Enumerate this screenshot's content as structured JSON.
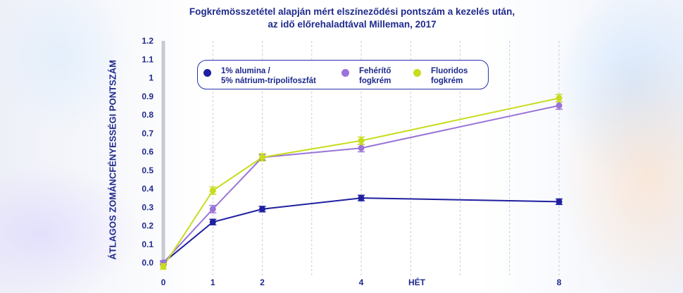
{
  "chart_data": {
    "type": "line",
    "title_line1": "Fogkrémösszetétel alapján mért elszíneződési pontszám a kezelés után,",
    "title_line2": "az idő előrehaladtával Milleman, 2017",
    "xlabel": "HÉT",
    "ylabel": "ÁTLAGOS ZOMÁNCFÉNYESSÉGI PONTSZÁM",
    "x": [
      0,
      1,
      2,
      4,
      8
    ],
    "x_tick_labels": [
      "0",
      "1",
      "2",
      "4",
      "8"
    ],
    "y_tick_labels": [
      "0.0",
      "0.1",
      "0.2",
      "0.3",
      "0.4",
      "0.5",
      "0.6",
      "0.7",
      "0.8",
      "0.9",
      "1",
      "1.1",
      "1.2"
    ],
    "ylim": [
      0,
      1.2
    ],
    "grid": "vertical dashed",
    "legend_position": "top-left",
    "series": [
      {
        "name": "1% alumina /\n5% nátrium-tripolifoszfát",
        "color": "#1f1fa0",
        "values": [
          0.0,
          0.22,
          0.29,
          0.35,
          0.33
        ],
        "error": [
          0.01,
          0.015,
          0.015,
          0.015,
          0.015
        ]
      },
      {
        "name": "Fehérítő\nfogkrém",
        "color": "#9a73d8",
        "values": [
          0.0,
          0.29,
          0.57,
          0.62,
          0.85
        ],
        "error": [
          0.01,
          0.02,
          0.015,
          0.02,
          0.02
        ]
      },
      {
        "name": "Fluoridos\nfogkrém",
        "color": "#c8dc1e",
        "values": [
          -0.02,
          0.39,
          0.57,
          0.66,
          0.89
        ],
        "error": [
          0.015,
          0.02,
          0.02,
          0.02,
          0.02
        ]
      }
    ]
  }
}
